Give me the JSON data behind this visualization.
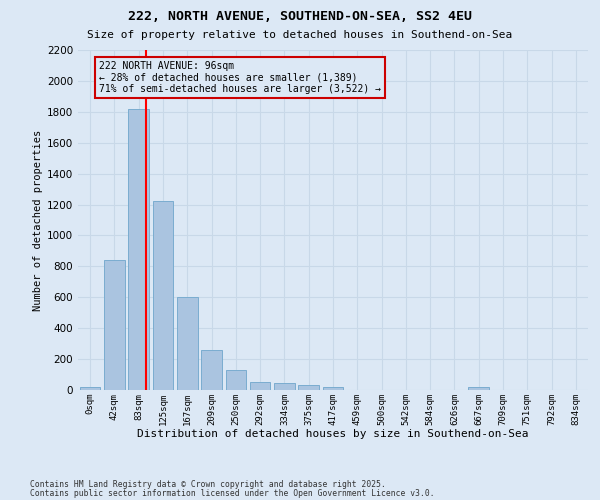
{
  "title1": "222, NORTH AVENUE, SOUTHEND-ON-SEA, SS2 4EU",
  "title2": "Size of property relative to detached houses in Southend-on-Sea",
  "xlabel": "Distribution of detached houses by size in Southend-on-Sea",
  "ylabel": "Number of detached properties",
  "bin_labels": [
    "0sqm",
    "42sqm",
    "83sqm",
    "125sqm",
    "167sqm",
    "209sqm",
    "250sqm",
    "292sqm",
    "334sqm",
    "375sqm",
    "417sqm",
    "459sqm",
    "500sqm",
    "542sqm",
    "584sqm",
    "626sqm",
    "667sqm",
    "709sqm",
    "751sqm",
    "792sqm",
    "834sqm"
  ],
  "bar_heights": [
    22,
    840,
    1820,
    1220,
    600,
    260,
    130,
    55,
    45,
    30,
    20,
    0,
    0,
    0,
    0,
    0,
    18,
    0,
    0,
    0,
    0
  ],
  "bar_color": "#aac4e0",
  "bar_edge_color": "#7aacd0",
  "grid_color": "#c8d8e8",
  "background_color": "#dce8f5",
  "annotation_text": "222 NORTH AVENUE: 96sqm\n← 28% of detached houses are smaller (1,389)\n71% of semi-detached houses are larger (3,522) →",
  "annotation_box_color": "#cc0000",
  "ylim": [
    0,
    2200
  ],
  "yticks": [
    0,
    200,
    400,
    600,
    800,
    1000,
    1200,
    1400,
    1600,
    1800,
    2000,
    2200
  ],
  "footnote1": "Contains HM Land Registry data © Crown copyright and database right 2025.",
  "footnote2": "Contains public sector information licensed under the Open Government Licence v3.0."
}
